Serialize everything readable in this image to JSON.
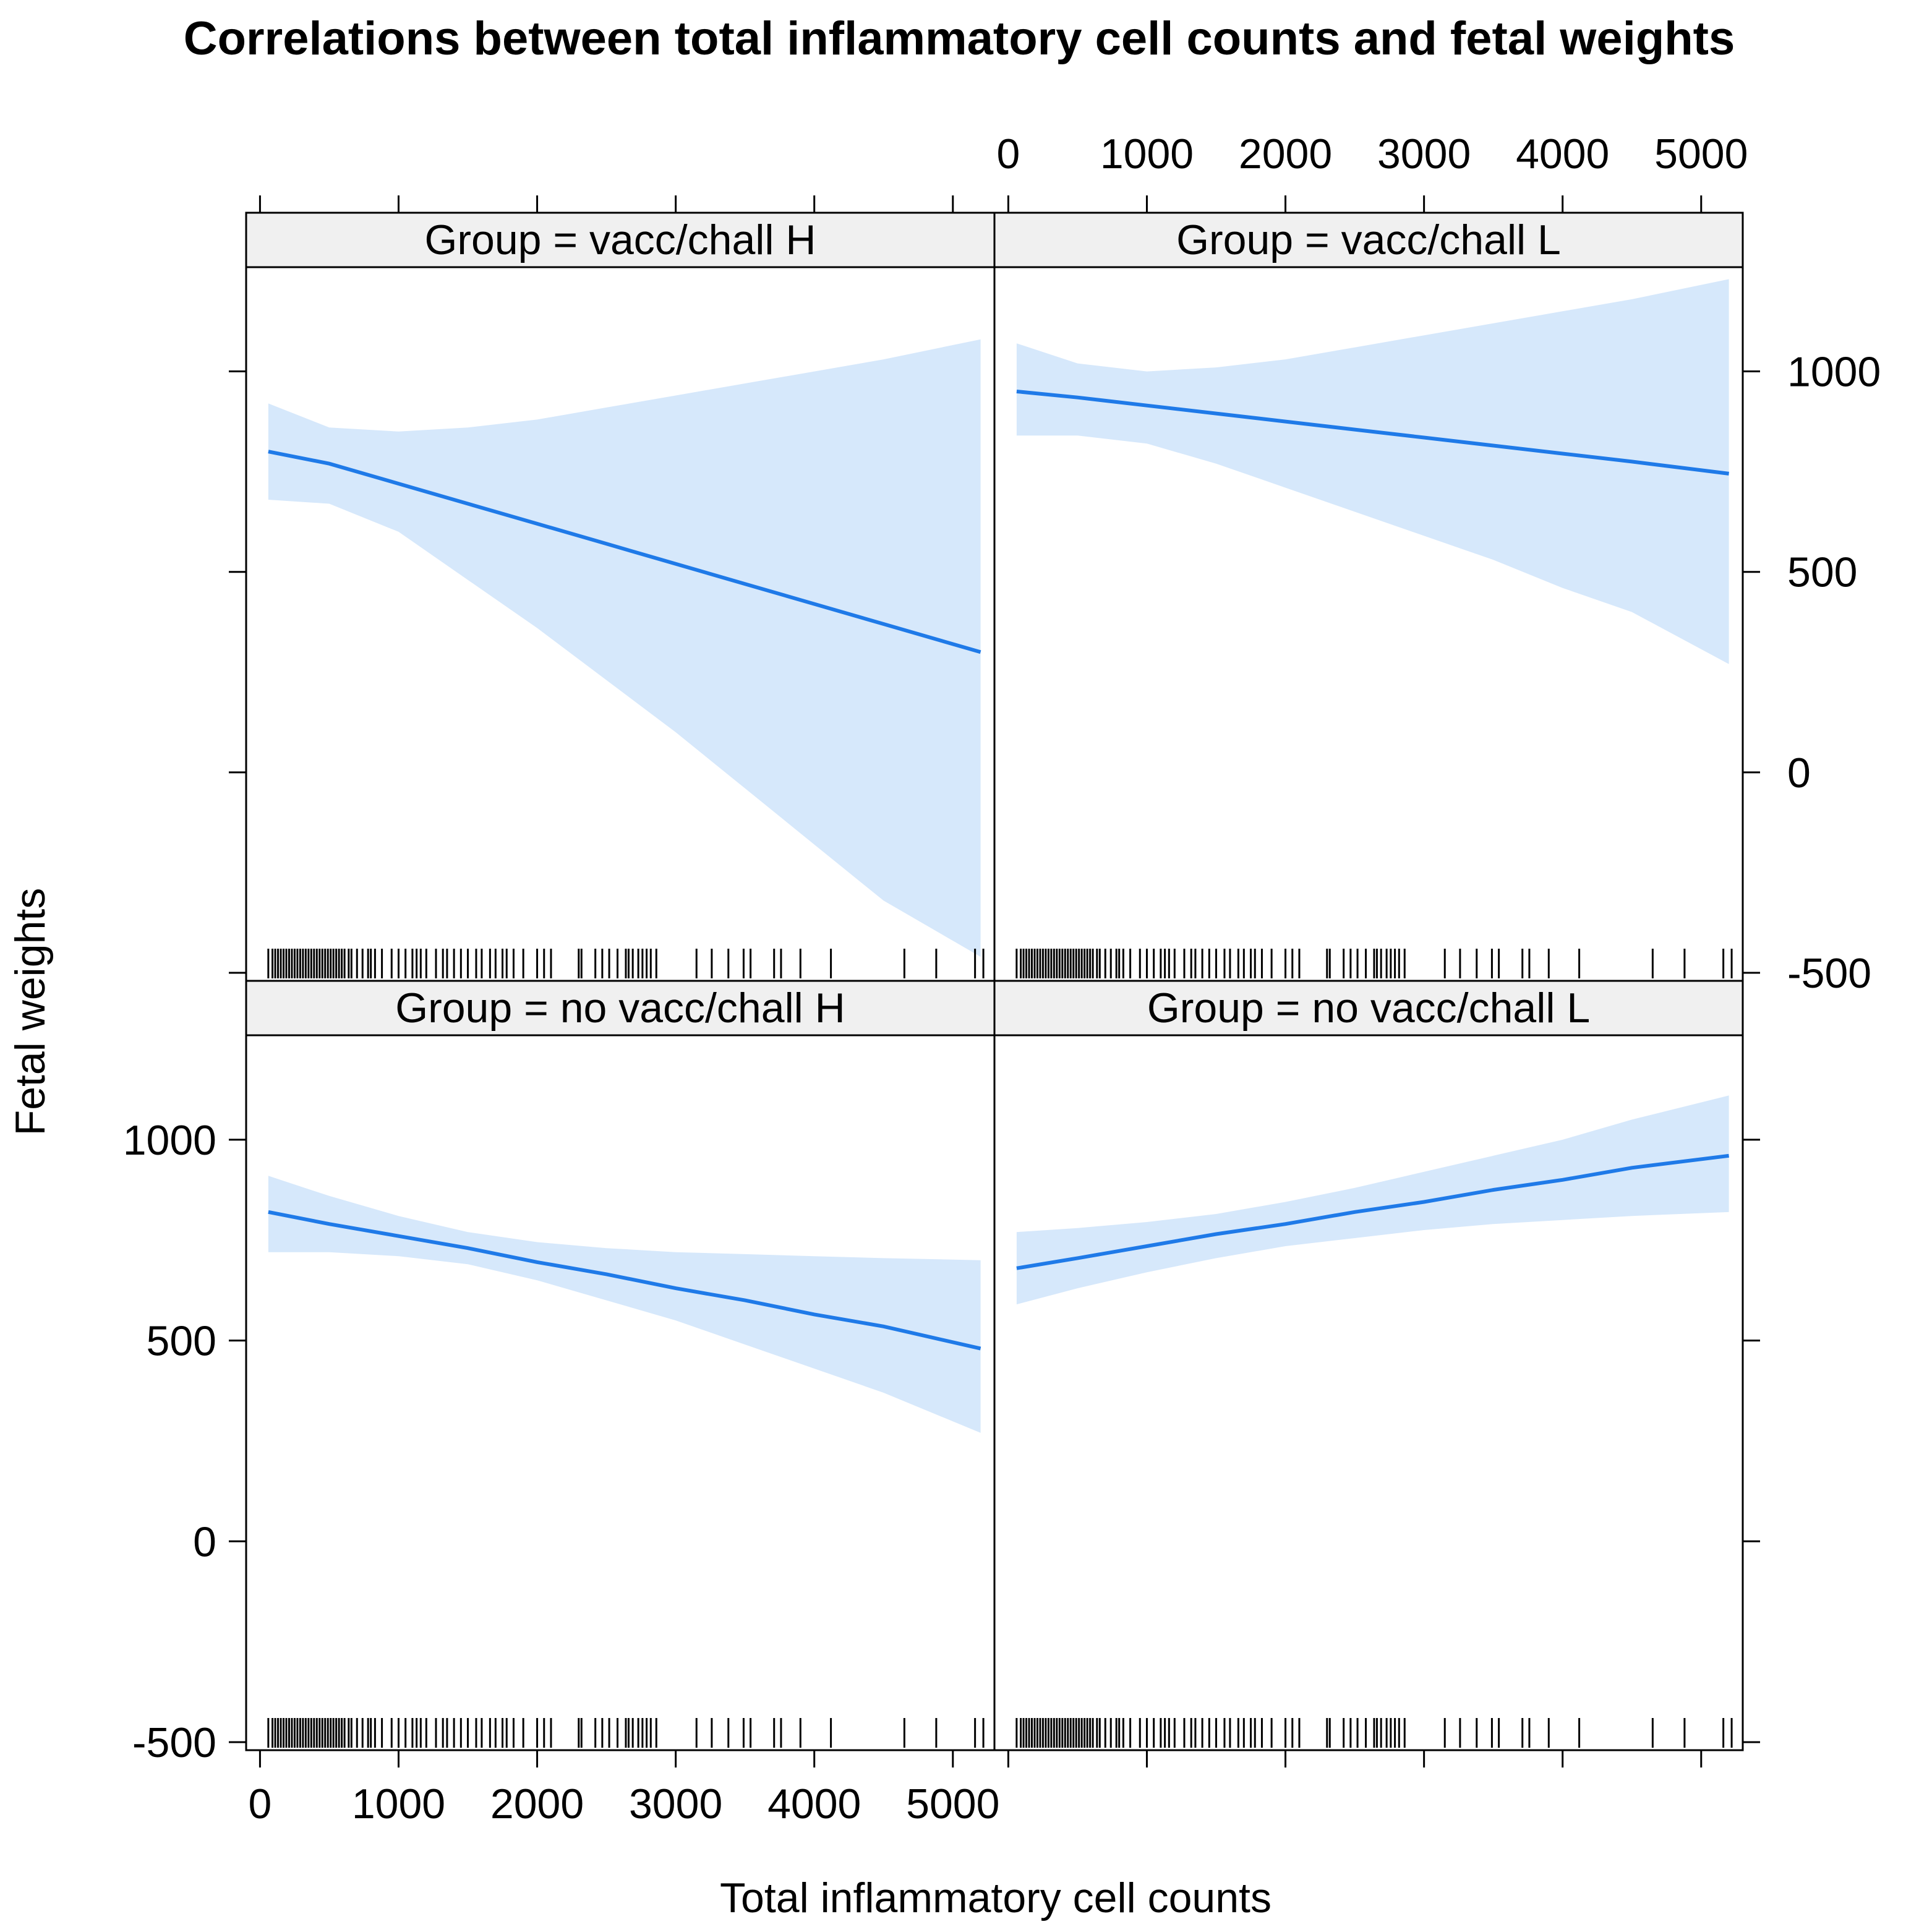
{
  "title": "Correlations between total inflammatory cell counts and fetal weights",
  "xlabel": "Total inflammatory cell counts",
  "ylabel": "Fetal weights",
  "colors": {
    "line": "#1f7ae8",
    "band": "#d6e8fb",
    "strip": "#f0f0f0",
    "rug": "#000000"
  },
  "x_tick_labels": [
    "0",
    "1000",
    "2000",
    "3000",
    "4000",
    "5000"
  ],
  "y_tick_labels": [
    "-500",
    "0",
    "500",
    "1000"
  ],
  "rug_x": [
    60,
    90,
    110,
    130,
    150,
    170,
    190,
    210,
    230,
    250,
    270,
    290,
    310,
    330,
    350,
    370,
    390,
    410,
    430,
    450,
    470,
    490,
    510,
    530,
    550,
    570,
    590,
    610,
    640,
    660,
    700,
    740,
    780,
    800,
    830,
    880,
    950,
    1000,
    1050,
    1100,
    1130,
    1160,
    1200,
    1270,
    1320,
    1350,
    1400,
    1450,
    1500,
    1560,
    1600,
    1660,
    1700,
    1750,
    1780,
    1830,
    1900,
    2000,
    2050,
    2100,
    2300,
    2320,
    2420,
    2470,
    2520,
    2580,
    2640,
    2660,
    2690,
    2730,
    2760,
    2790,
    2820,
    2860,
    3150,
    3260,
    3380,
    3490,
    3540,
    3710,
    3760,
    3900,
    4120,
    4650,
    4880,
    5160,
    5220
  ],
  "chart_data": {
    "type": "line",
    "layout": "2x2 trellis",
    "title": "Correlations between total inflammatory cell counts and fetal weights",
    "xlabel": "Total inflammatory cell counts",
    "ylabel": "Fetal weights",
    "xlim": [
      -100,
      5300
    ],
    "ylim": [
      -520,
      1260
    ],
    "x_ticks": [
      0,
      1000,
      2000,
      3000,
      4000,
      5000
    ],
    "y_ticks": [
      -500,
      0,
      500,
      1000
    ],
    "grid": false,
    "panels": [
      {
        "strip": "Group = vacc/chall  H",
        "row": "top",
        "col": "left",
        "x": [
          60,
          500,
          1000,
          1500,
          2000,
          2500,
          3000,
          3500,
          4000,
          4500,
          5200
        ],
        "fit": [
          800,
          770,
          720,
          670,
          620,
          570,
          520,
          470,
          420,
          370,
          300
        ],
        "upper": [
          920,
          860,
          850,
          860,
          880,
          910,
          940,
          970,
          1000,
          1030,
          1080
        ],
        "lower": [
          680,
          670,
          600,
          480,
          360,
          230,
          100,
          -40,
          -180,
          -320,
          -460
        ]
      },
      {
        "strip": "Group = vacc/chall  L",
        "row": "top",
        "col": "right",
        "x": [
          60,
          500,
          1000,
          1500,
          2000,
          2500,
          3000,
          3500,
          4000,
          4500,
          5200
        ],
        "fit": [
          950,
          935,
          915,
          895,
          875,
          855,
          835,
          815,
          795,
          775,
          745
        ],
        "upper": [
          1070,
          1020,
          1000,
          1010,
          1030,
          1060,
          1090,
          1120,
          1150,
          1180,
          1230
        ],
        "lower": [
          840,
          840,
          820,
          770,
          710,
          650,
          590,
          530,
          460,
          400,
          270
        ]
      },
      {
        "strip": "Group = no  vacc/chall  H",
        "row": "bottom",
        "col": "left",
        "x": [
          60,
          500,
          1000,
          1500,
          2000,
          2500,
          3000,
          3500,
          4000,
          4500,
          5200
        ],
        "fit": [
          820,
          790,
          760,
          730,
          695,
          665,
          630,
          600,
          565,
          535,
          480
        ],
        "upper": [
          910,
          860,
          810,
          770,
          745,
          730,
          720,
          715,
          710,
          705,
          700
        ],
        "lower": [
          720,
          720,
          710,
          690,
          650,
          600,
          550,
          490,
          430,
          370,
          270
        ]
      },
      {
        "strip": "Group = no  vacc/chall  L",
        "row": "bottom",
        "col": "right",
        "x": [
          60,
          500,
          1000,
          1500,
          2000,
          2500,
          3000,
          3500,
          4000,
          4500,
          5200
        ],
        "fit": [
          680,
          705,
          735,
          765,
          790,
          820,
          845,
          875,
          900,
          930,
          960
        ],
        "upper": [
          770,
          780,
          795,
          815,
          845,
          880,
          920,
          960,
          1000,
          1050,
          1110
        ],
        "lower": [
          590,
          630,
          670,
          705,
          735,
          755,
          775,
          790,
          800,
          810,
          820
        ]
      }
    ]
  }
}
